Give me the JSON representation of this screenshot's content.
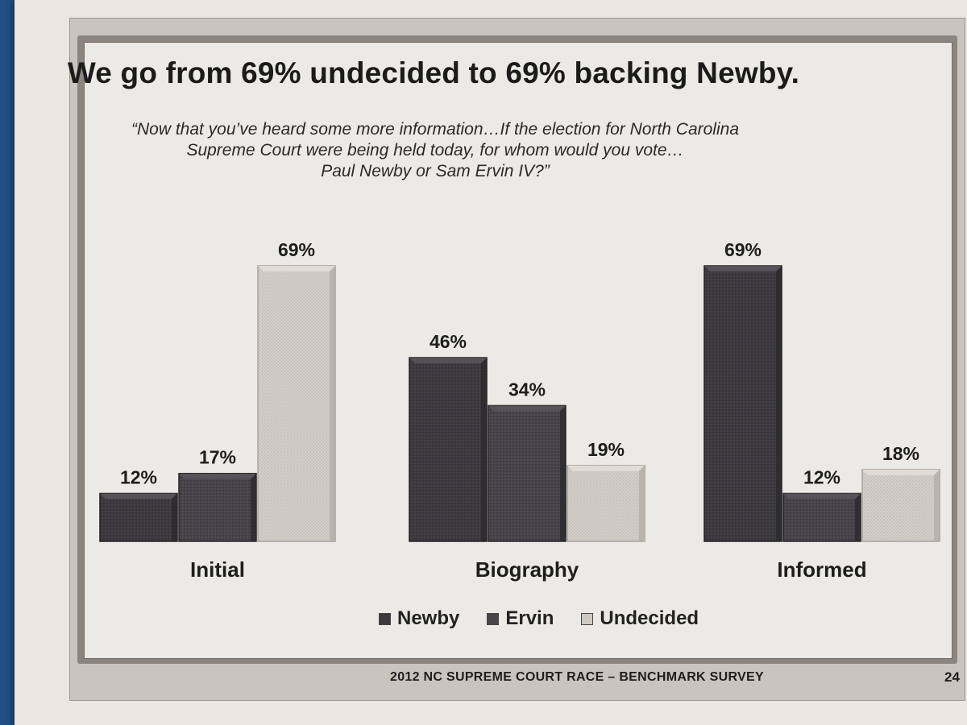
{
  "slide": {
    "title": "We go from 69% undecided to 69% backing Newby.",
    "subtitle_lines": [
      "“Now that you’ve heard some more information…If the election for North Carolina",
      "Supreme Court were being held today, for whom would you vote…",
      "Paul Newby or Sam Ervin IV?”"
    ],
    "footer": "2012 NC SUPREME COURT RACE – BENCHMARK SURVEY",
    "page_number": "24"
  },
  "colors": {
    "Newby": "#3c3a3e",
    "Ervin": "#47444a",
    "Undecided": "#cdc9c3"
  },
  "chart_data": {
    "type": "bar",
    "title": "We go from 69% undecided to 69% backing Newby.",
    "categories": [
      "Initial",
      "Biography",
      "Informed"
    ],
    "series": [
      {
        "name": "Newby",
        "values": [
          12,
          46,
          69
        ]
      },
      {
        "name": "Ervin",
        "values": [
          17,
          34,
          12
        ]
      },
      {
        "name": "Undecided",
        "values": [
          69,
          19,
          18
        ]
      }
    ],
    "value_format": "%",
    "data_labels": [
      [
        "12%",
        "46%",
        "69%"
      ],
      [
        "17%",
        "34%",
        "12%"
      ],
      [
        "69%",
        "19%",
        "18%"
      ]
    ],
    "ylim": [
      0,
      69
    ],
    "grid": false,
    "legend": "bottom",
    "legend_labels": [
      "Newby",
      "Ervin",
      "Undecided"
    ]
  }
}
